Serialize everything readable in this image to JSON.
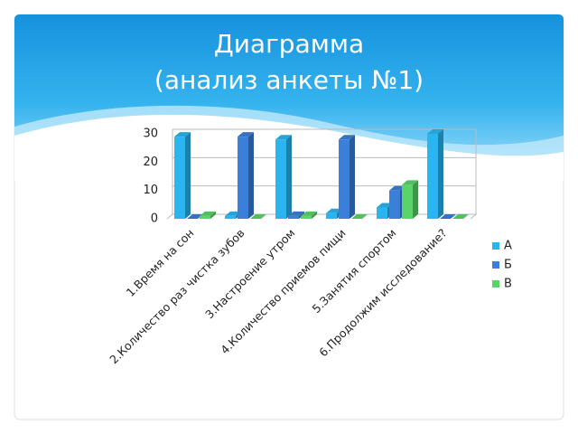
{
  "chart_data": {
    "type": "bar3d",
    "title": [
      "Диаграмма",
      "(анализ анкеты №1)"
    ],
    "categories": [
      "1.Время на сон",
      "2.Количество раз чистка зубов",
      "3.Настроение утром",
      "4.Количество приемов пищи",
      "5.Занятия спортом",
      "6.Продолжим исследование?"
    ],
    "series": [
      {
        "name": "А",
        "color": "#2bb5f0",
        "values": [
          29,
          1,
          28,
          2,
          4,
          30
        ]
      },
      {
        "name": "Б",
        "color": "#3b7fd8",
        "values": [
          0,
          29,
          1,
          28,
          10,
          0
        ]
      },
      {
        "name": "В",
        "color": "#5ad469",
        "values": [
          1,
          0,
          1,
          0,
          12,
          0
        ]
      }
    ],
    "ylim": [
      0,
      30
    ],
    "yticks": [
      0,
      10,
      20,
      30
    ],
    "grid": true,
    "legend": "right"
  }
}
